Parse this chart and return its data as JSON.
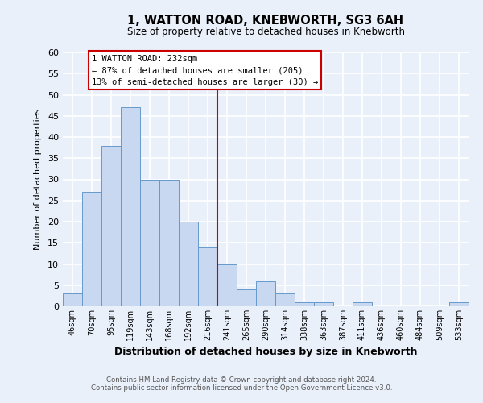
{
  "title": "1, WATTON ROAD, KNEBWORTH, SG3 6AH",
  "subtitle": "Size of property relative to detached houses in Knebworth",
  "xlabel": "Distribution of detached houses by size in Knebworth",
  "ylabel": "Number of detached properties",
  "bar_values": [
    3,
    27,
    38,
    47,
    30,
    30,
    20,
    14,
    10,
    4,
    6,
    3,
    1,
    1,
    0,
    1,
    0,
    0,
    0,
    0,
    1
  ],
  "bin_labels": [
    "46sqm",
    "70sqm",
    "95sqm",
    "119sqm",
    "143sqm",
    "168sqm",
    "192sqm",
    "216sqm",
    "241sqm",
    "265sqm",
    "290sqm",
    "314sqm",
    "338sqm",
    "363sqm",
    "387sqm",
    "411sqm",
    "436sqm",
    "460sqm",
    "484sqm",
    "509sqm",
    "533sqm"
  ],
  "bar_color": "#c8d8f0",
  "bar_edge_color": "#6699cc",
  "background_color": "#eaf0fa",
  "grid_color": "#ffffff",
  "red_line_x": 7.5,
  "red_line_color": "#cc0000",
  "ylim": [
    0,
    60
  ],
  "yticks": [
    0,
    5,
    10,
    15,
    20,
    25,
    30,
    35,
    40,
    45,
    50,
    55,
    60
  ],
  "annotation_title": "1 WATTON ROAD: 232sqm",
  "annotation_line1": "← 87% of detached houses are smaller (205)",
  "annotation_line2": "13% of semi-detached houses are larger (30) →",
  "annotation_box_color": "#ffffff",
  "annotation_box_edge_color": "#cc0000",
  "footer_line1": "Contains HM Land Registry data © Crown copyright and database right 2024.",
  "footer_line2": "Contains public sector information licensed under the Open Government Licence v3.0."
}
